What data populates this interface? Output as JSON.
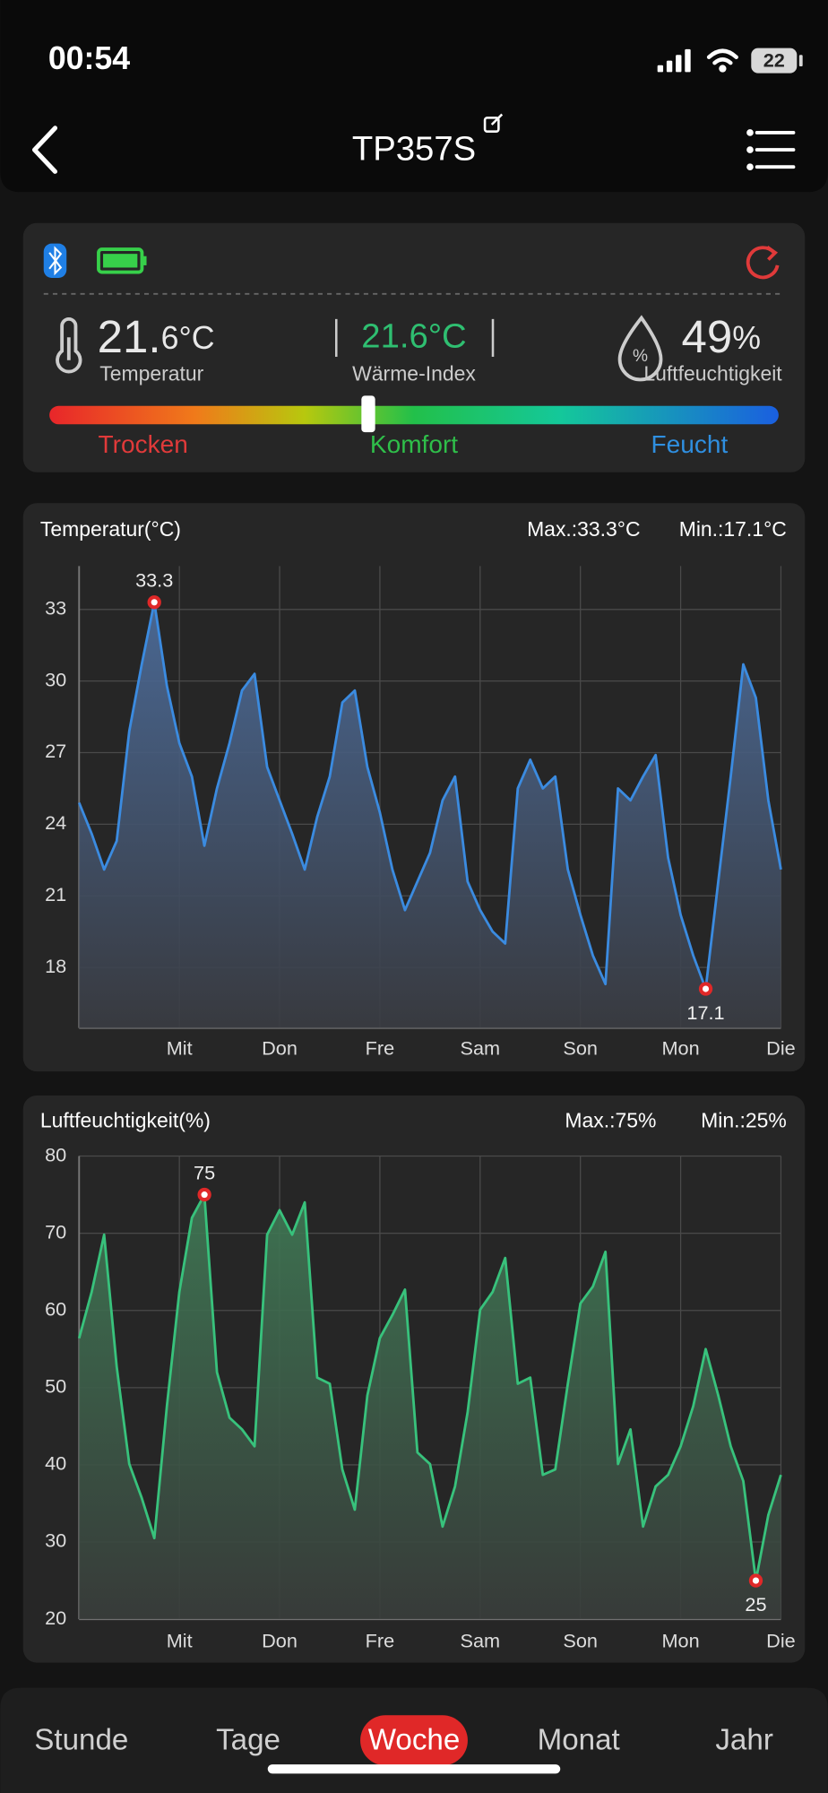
{
  "status_bar": {
    "time": "00:54",
    "battery": "22"
  },
  "header": {
    "title": "TP357S"
  },
  "summary": {
    "temperature_int": "21.",
    "temperature_dec": "6°C",
    "temperature_label": "Temperatur",
    "heat_index": "21.6°C",
    "heat_index_label": "Wärme-Index",
    "humidity": "49",
    "humidity_unit": "%",
    "humidity_label": "Luftfeuchtigkeit",
    "scale": [
      "Trocken",
      "Komfort",
      "Feucht"
    ]
  },
  "chart_data": [
    {
      "type": "line",
      "title": "Temperatur(°C)",
      "max_label": "Max.:33.3°C",
      "min_label": "Min.:17.1°C",
      "x_labels": [
        "Mit",
        "Don",
        "Fre",
        "Sam",
        "Son",
        "Mon",
        "Die"
      ],
      "color": "#3b8be0",
      "fill": "#4d6e9e",
      "values": [
        24.9,
        23.6,
        22.1,
        23.3,
        27.9,
        30.7,
        33.3,
        29.8,
        27.4,
        26.0,
        23.1,
        25.5,
        27.4,
        29.6,
        30.3,
        26.4,
        25.0,
        23.6,
        22.1,
        24.3,
        26.0,
        29.1,
        29.6,
        26.4,
        24.5,
        22.1,
        20.4,
        21.6,
        22.8,
        25.0,
        26.0,
        21.6,
        20.4,
        19.5,
        19.0,
        25.5,
        26.7,
        25.5,
        26.0,
        22.1,
        20.2,
        18.5,
        17.3,
        25.5,
        25.0,
        26.0,
        26.9,
        22.6,
        20.2,
        18.5,
        17.1,
        21.6,
        26.0,
        30.7,
        29.3,
        25.0,
        22.1
      ],
      "ylim": [
        15.46,
        34.82
      ],
      "yticks": [
        18,
        21,
        24,
        27,
        30,
        33
      ],
      "grid": true
    },
    {
      "type": "line",
      "title": "Luftfeuchtigkeit(%)",
      "max_label": "Max.:75%",
      "min_label": "Min.:25%",
      "x_labels": [
        "Mit",
        "Don",
        "Fre",
        "Sam",
        "Son",
        "Mon",
        "Die"
      ],
      "color": "#38c27c",
      "fill": "#3f7a55",
      "values": [
        56.4,
        62.4,
        69.8,
        52.7,
        40.1,
        35.7,
        30.5,
        47.6,
        62.4,
        72.0,
        75,
        52.0,
        46.1,
        44.6,
        42.4,
        69.8,
        73,
        69.8,
        74,
        51.3,
        50.5,
        39.4,
        34.2,
        49.0,
        56.4,
        59.4,
        62.7,
        41.6,
        40.1,
        32.0,
        37.2,
        46.8,
        60.1,
        62.4,
        66.8,
        50.5,
        51.3,
        38.7,
        39.4,
        50.5,
        60.9,
        63.1,
        67.6,
        40.1,
        44.6,
        32.0,
        37.2,
        38.7,
        42.4,
        47.6,
        55.0,
        49.0,
        42.4,
        37.9,
        25,
        33.5,
        38.7
      ],
      "ylim": [
        20,
        80
      ],
      "yticks": [
        20,
        30,
        40,
        50,
        60,
        70,
        80
      ],
      "grid": true
    }
  ],
  "tabs": {
    "items": [
      "Stunde",
      "Tage",
      "Woche",
      "Monat",
      "Jahr"
    ],
    "active": 2
  }
}
